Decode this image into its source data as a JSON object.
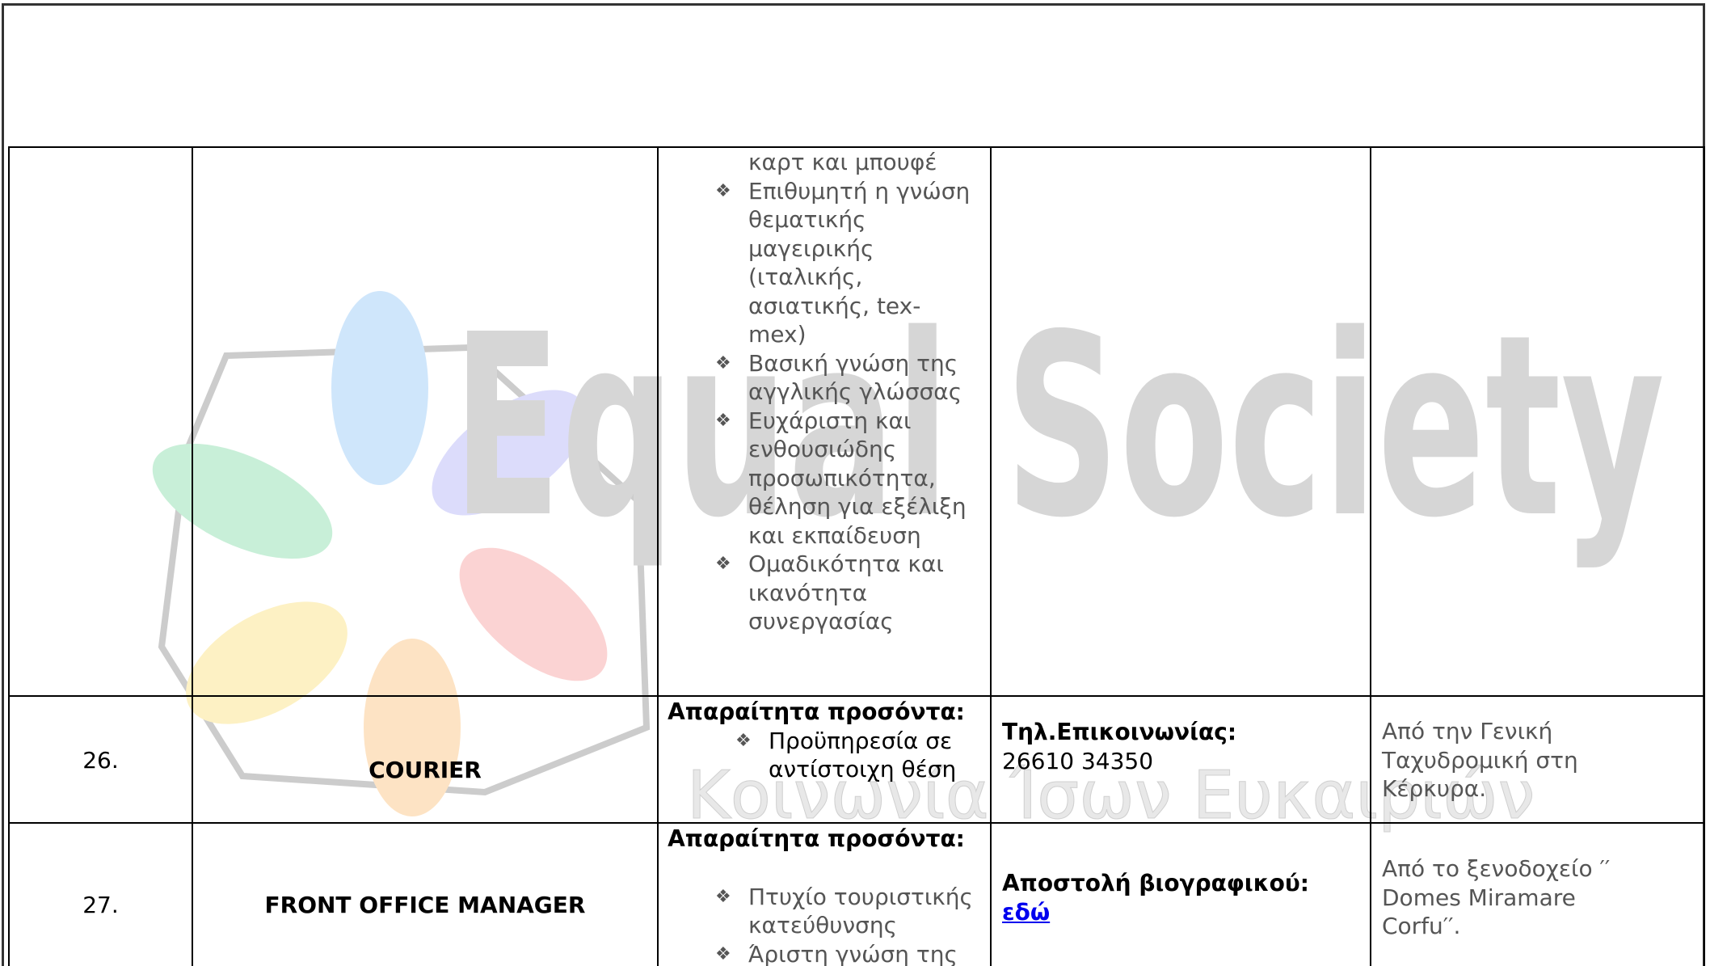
{
  "watermark": {
    "title": "Equal Society",
    "subtitle": "Κοινωνία Ίσων Ευκαιριών"
  },
  "table": {
    "rows": [
      {
        "requirements": {
          "items": [
            "καρτ και μπουφέ",
            "Επιθυμητή η γνώση θεματικής μαγειρικής (ιταλικής, ασιατικής, tex-mex)",
            "Βασική γνώση της αγγλικής γλώσσας",
            "Ευχάριστη και ενθουσιώδης προσωπικότητα, θέληση για εξέλιξη και εκπαίδευση",
            "Ομαδικότητα και ικανότητα συνεργασίας"
          ]
        }
      },
      {
        "number": "26.",
        "position": "COURIER",
        "requirements": {
          "heading": "Απαραίτητα προσόντα:",
          "items": [
            "Προϋπηρεσία σε αντίστοιχη θέση"
          ]
        },
        "contact": {
          "label": "Τηλ.Επικοινωνίας:",
          "value": "26610 34350"
        },
        "employer": "Από την Γενική Ταχυδρομική στη Κέρκυρα."
      },
      {
        "number": "27.",
        "position": "FRONT OFFICE MANAGER",
        "requirements": {
          "heading": "Απαραίτητα προσόντα:",
          "items": [
            "Πτυχίο τουριστικής κατεύθυνσης",
            "Άριστη γνώση της"
          ]
        },
        "contact": {
          "label": "Αποστολή βιογραφικού:",
          "link": "εδώ"
        },
        "employer": "Από το ξενοδοχείο ′′ Domes Miramare Corfu′′."
      }
    ]
  }
}
